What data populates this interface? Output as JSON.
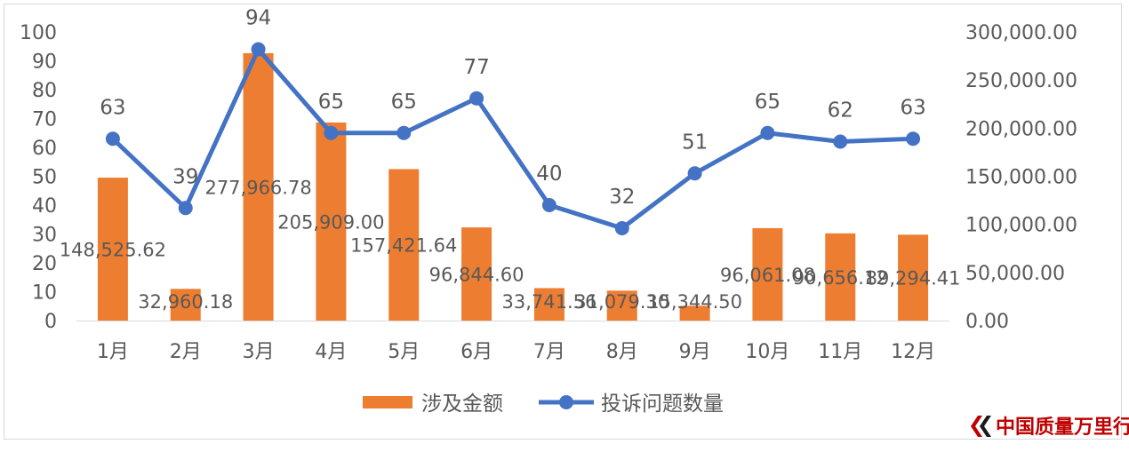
{
  "chart_data": {
    "type": "bar+line",
    "categories": [
      "1月",
      "2月",
      "3月",
      "4月",
      "5月",
      "6月",
      "7月",
      "8月",
      "9月",
      "10月",
      "11月",
      "12月"
    ],
    "series": [
      {
        "name": "涉及金额",
        "type": "bar",
        "axis": "right",
        "color": "#ed7d31",
        "values": [
          148525.62,
          32960.18,
          277966.78,
          205909.0,
          157421.64,
          96844.6,
          33741.56,
          31079.3,
          15344.5,
          96061.08,
          90656.12,
          89294.41
        ],
        "labels": [
          "148,525.62",
          "32,960.18",
          "277,966.78",
          "205,909.00",
          "157,421.64",
          "96,844.60",
          "33,741.56",
          "31,079.30",
          "15,344.50",
          "96,061.08",
          "90,656.12",
          "89,294.41"
        ]
      },
      {
        "name": "投诉问题数量",
        "type": "line",
        "axis": "left",
        "color": "#4472c4",
        "values": [
          63,
          39,
          94,
          65,
          65,
          77,
          40,
          32,
          51,
          65,
          62,
          63
        ],
        "labels": [
          "63",
          "39",
          "94",
          "65",
          "65",
          "77",
          "40",
          "32",
          "51",
          "65",
          "62",
          "63"
        ]
      }
    ],
    "y_left": {
      "ylim": [
        0,
        100
      ],
      "ticks": [
        "0",
        "10",
        "20",
        "30",
        "40",
        "50",
        "60",
        "70",
        "80",
        "90",
        "100"
      ]
    },
    "y_right": {
      "ylim": [
        0,
        300000
      ],
      "ticks": [
        "0.00",
        "50,000.00",
        "100,000.00",
        "150,000.00",
        "200,000.00",
        "250,000.00",
        "300,000.00"
      ]
    },
    "grid": false,
    "legend": "bottom"
  },
  "watermark": {
    "text": "中国质量万里行",
    "color": "#c00000"
  }
}
